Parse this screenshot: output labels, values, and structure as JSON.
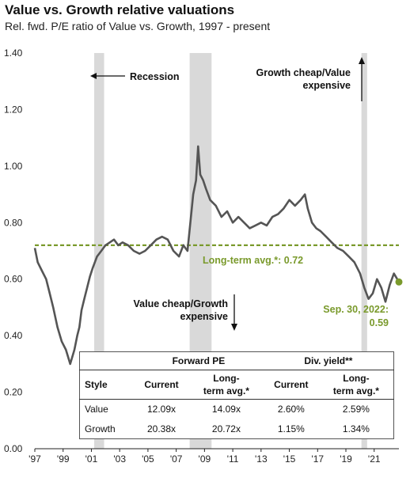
{
  "chart_data": {
    "type": "line",
    "title": "Value vs. Growth relative valuations",
    "subtitle": "Rel. fwd. P/E ratio of Value vs. Growth, 1997 - present",
    "ylim": [
      0.0,
      1.4
    ],
    "yticks": [
      "0.00",
      "0.20",
      "0.40",
      "0.60",
      "0.80",
      "1.00",
      "1.20",
      "1.40"
    ],
    "xlim": [
      1997.0,
      2022.75
    ],
    "xticks": [
      "'97",
      "'99",
      "'01",
      "'03",
      "'05",
      "'07",
      "'09",
      "'11",
      "'13",
      "'15",
      "'17",
      "'19",
      "'21"
    ],
    "series": [
      {
        "color": "#555555",
        "x": [
          1997.0,
          1997.2,
          1997.5,
          1997.8,
          1998.0,
          1998.3,
          1998.6,
          1998.9,
          1999.2,
          1999.5,
          1999.8,
          2000.0,
          2000.15,
          2000.3,
          2000.5,
          2000.7,
          2000.9,
          2001.1,
          2001.4,
          2001.7,
          2002.0,
          2002.3,
          2002.6,
          2002.9,
          2003.2,
          2003.6,
          2004.0,
          2004.4,
          2004.8,
          2005.2,
          2005.6,
          2006.0,
          2006.4,
          2006.8,
          2007.2,
          2007.5,
          2007.8,
          2008.0,
          2008.2,
          2008.4,
          2008.55,
          2008.7,
          2008.9,
          2009.1,
          2009.4,
          2009.8,
          2010.2,
          2010.6,
          2011.0,
          2011.4,
          2011.8,
          2012.2,
          2012.6,
          2013.0,
          2013.4,
          2013.8,
          2014.2,
          2014.6,
          2015.0,
          2015.4,
          2015.8,
          2016.1,
          2016.3,
          2016.6,
          2016.9,
          2017.2,
          2017.6,
          2018.0,
          2018.4,
          2018.8,
          2019.2,
          2019.6,
          2020.0,
          2020.3,
          2020.6,
          2020.9,
          2021.2,
          2021.5,
          2021.8,
          2022.1,
          2022.4,
          2022.75
        ],
        "y": [
          0.71,
          0.66,
          0.63,
          0.6,
          0.56,
          0.5,
          0.43,
          0.38,
          0.35,
          0.3,
          0.35,
          0.4,
          0.43,
          0.49,
          0.53,
          0.57,
          0.61,
          0.64,
          0.68,
          0.7,
          0.72,
          0.73,
          0.74,
          0.72,
          0.73,
          0.72,
          0.7,
          0.69,
          0.7,
          0.72,
          0.74,
          0.75,
          0.74,
          0.7,
          0.68,
          0.72,
          0.7,
          0.8,
          0.9,
          0.95,
          1.07,
          0.97,
          0.95,
          0.92,
          0.88,
          0.86,
          0.82,
          0.84,
          0.8,
          0.82,
          0.8,
          0.78,
          0.79,
          0.8,
          0.79,
          0.82,
          0.83,
          0.85,
          0.88,
          0.86,
          0.88,
          0.9,
          0.85,
          0.8,
          0.78,
          0.77,
          0.75,
          0.73,
          0.71,
          0.7,
          0.68,
          0.66,
          0.62,
          0.57,
          0.53,
          0.55,
          0.6,
          0.57,
          0.52,
          0.58,
          0.62,
          0.59
        ]
      },
      {
        "name": "Long-term avg.*",
        "color": "#7a9a2c",
        "style": "dashed",
        "x": [
          1997.0,
          2022.75
        ],
        "y": [
          0.72,
          0.72
        ]
      }
    ],
    "recession_bands": [
      [
        2001.2,
        2001.9
      ],
      [
        2007.95,
        2009.5
      ],
      [
        2020.1,
        2020.5
      ]
    ],
    "highlight_point": {
      "x": 2022.75,
      "y": 0.59,
      "color": "#7a9a2c"
    },
    "annotations": {
      "recession": "Recession",
      "growth_cheap_line1": "Growth cheap/Value",
      "growth_cheap_line2": "expensive",
      "long_term_avg": "Long-term avg.*:  0.72",
      "value_cheap_line1": "Value cheap/Growth",
      "value_cheap_line2": "expensive",
      "current_date": "Sep. 30, 2022:",
      "current_value": "0.59"
    },
    "grid": false,
    "legend": "none"
  },
  "table": {
    "group_forward_pe": "Forward PE",
    "group_div_yield": "Div. yield**",
    "col_style": "Style",
    "col_current": "Current",
    "col_lt_avg_line1": "Long-",
    "col_lt_avg_line2": "term avg.*",
    "rows": [
      {
        "style": "Value",
        "pe_current": "12.09x",
        "pe_lt_avg": "14.09x",
        "dy_current": "2.60%",
        "dy_lt_avg": "2.59%"
      },
      {
        "style": "Growth",
        "pe_current": "20.38x",
        "pe_lt_avg": "20.72x",
        "dy_current": "1.15%",
        "dy_lt_avg": "1.34%"
      }
    ]
  }
}
